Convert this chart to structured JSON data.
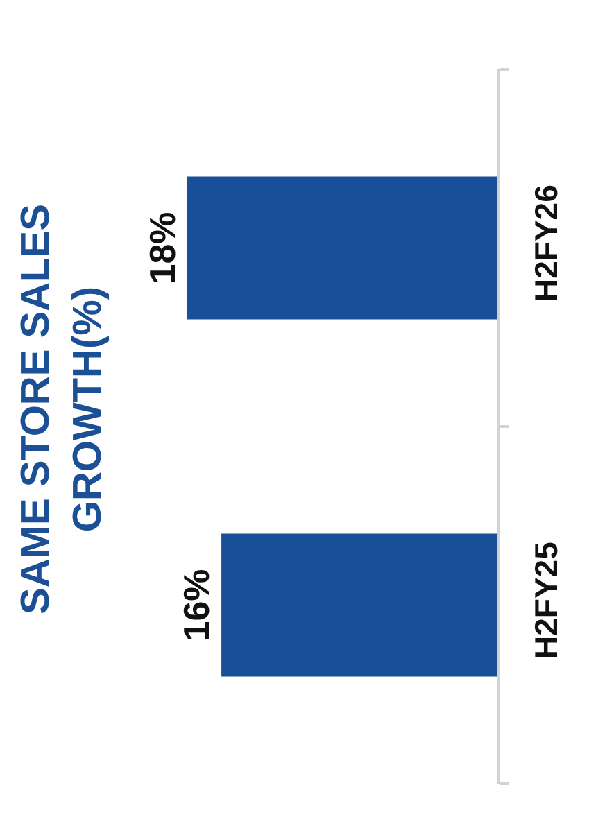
{
  "chart_data": {
    "type": "bar",
    "orientation": "horizontal",
    "title": "SAME STORE SALES\nGROWTH(%)",
    "categories": [
      "H2FY26",
      "H2FY25"
    ],
    "values": [
      18,
      16
    ],
    "value_labels": [
      "18%",
      "16%"
    ],
    "color": "#174f98"
  }
}
